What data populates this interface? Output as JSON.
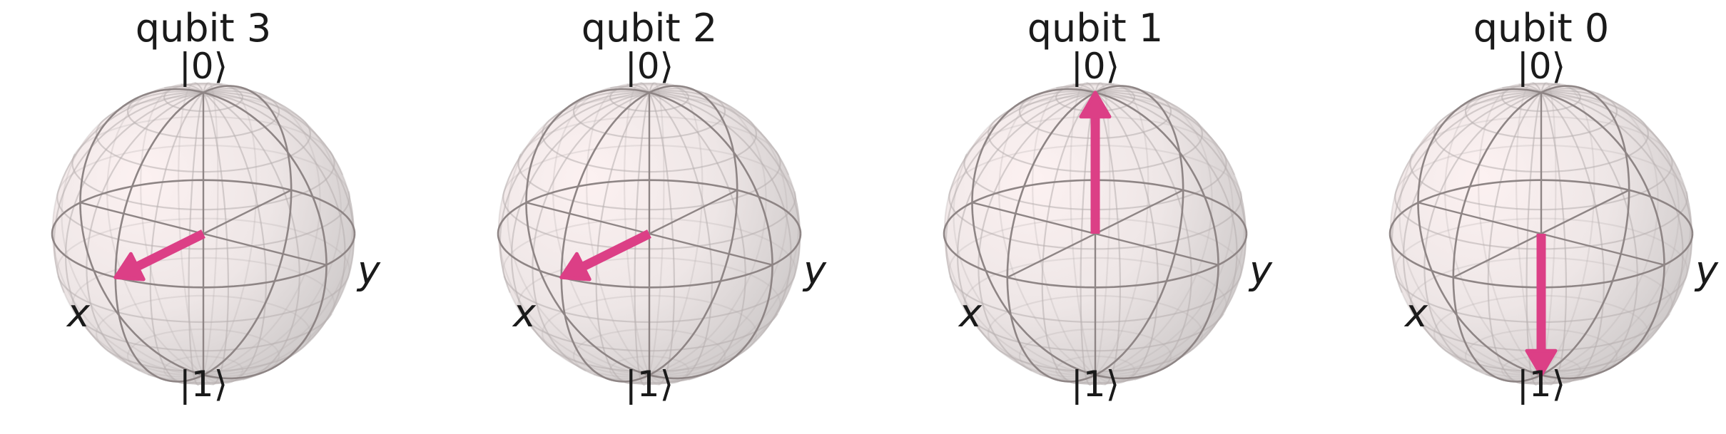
{
  "figure": {
    "qubits": [
      {
        "title": "qubit 3",
        "top_label": "|0⟩",
        "bottom_label": "|1⟩",
        "x_label": "x",
        "y_label": "y",
        "vector": "+x"
      },
      {
        "title": "qubit 2",
        "top_label": "|0⟩",
        "bottom_label": "|1⟩",
        "x_label": "x",
        "y_label": "y",
        "vector": "+x"
      },
      {
        "title": "qubit 1",
        "top_label": "|0⟩",
        "bottom_label": "|1⟩",
        "x_label": "x",
        "y_label": "y",
        "vector": "+z"
      },
      {
        "title": "qubit 0",
        "top_label": "|0⟩",
        "bottom_label": "|1⟩",
        "x_label": "x",
        "y_label": "y",
        "vector": "-z"
      }
    ],
    "colors": {
      "vector": "#dc3f86",
      "wireframe": "#8e8585",
      "sphere_light": "#fcefef",
      "sphere_dark": "#c6c1c1"
    }
  }
}
